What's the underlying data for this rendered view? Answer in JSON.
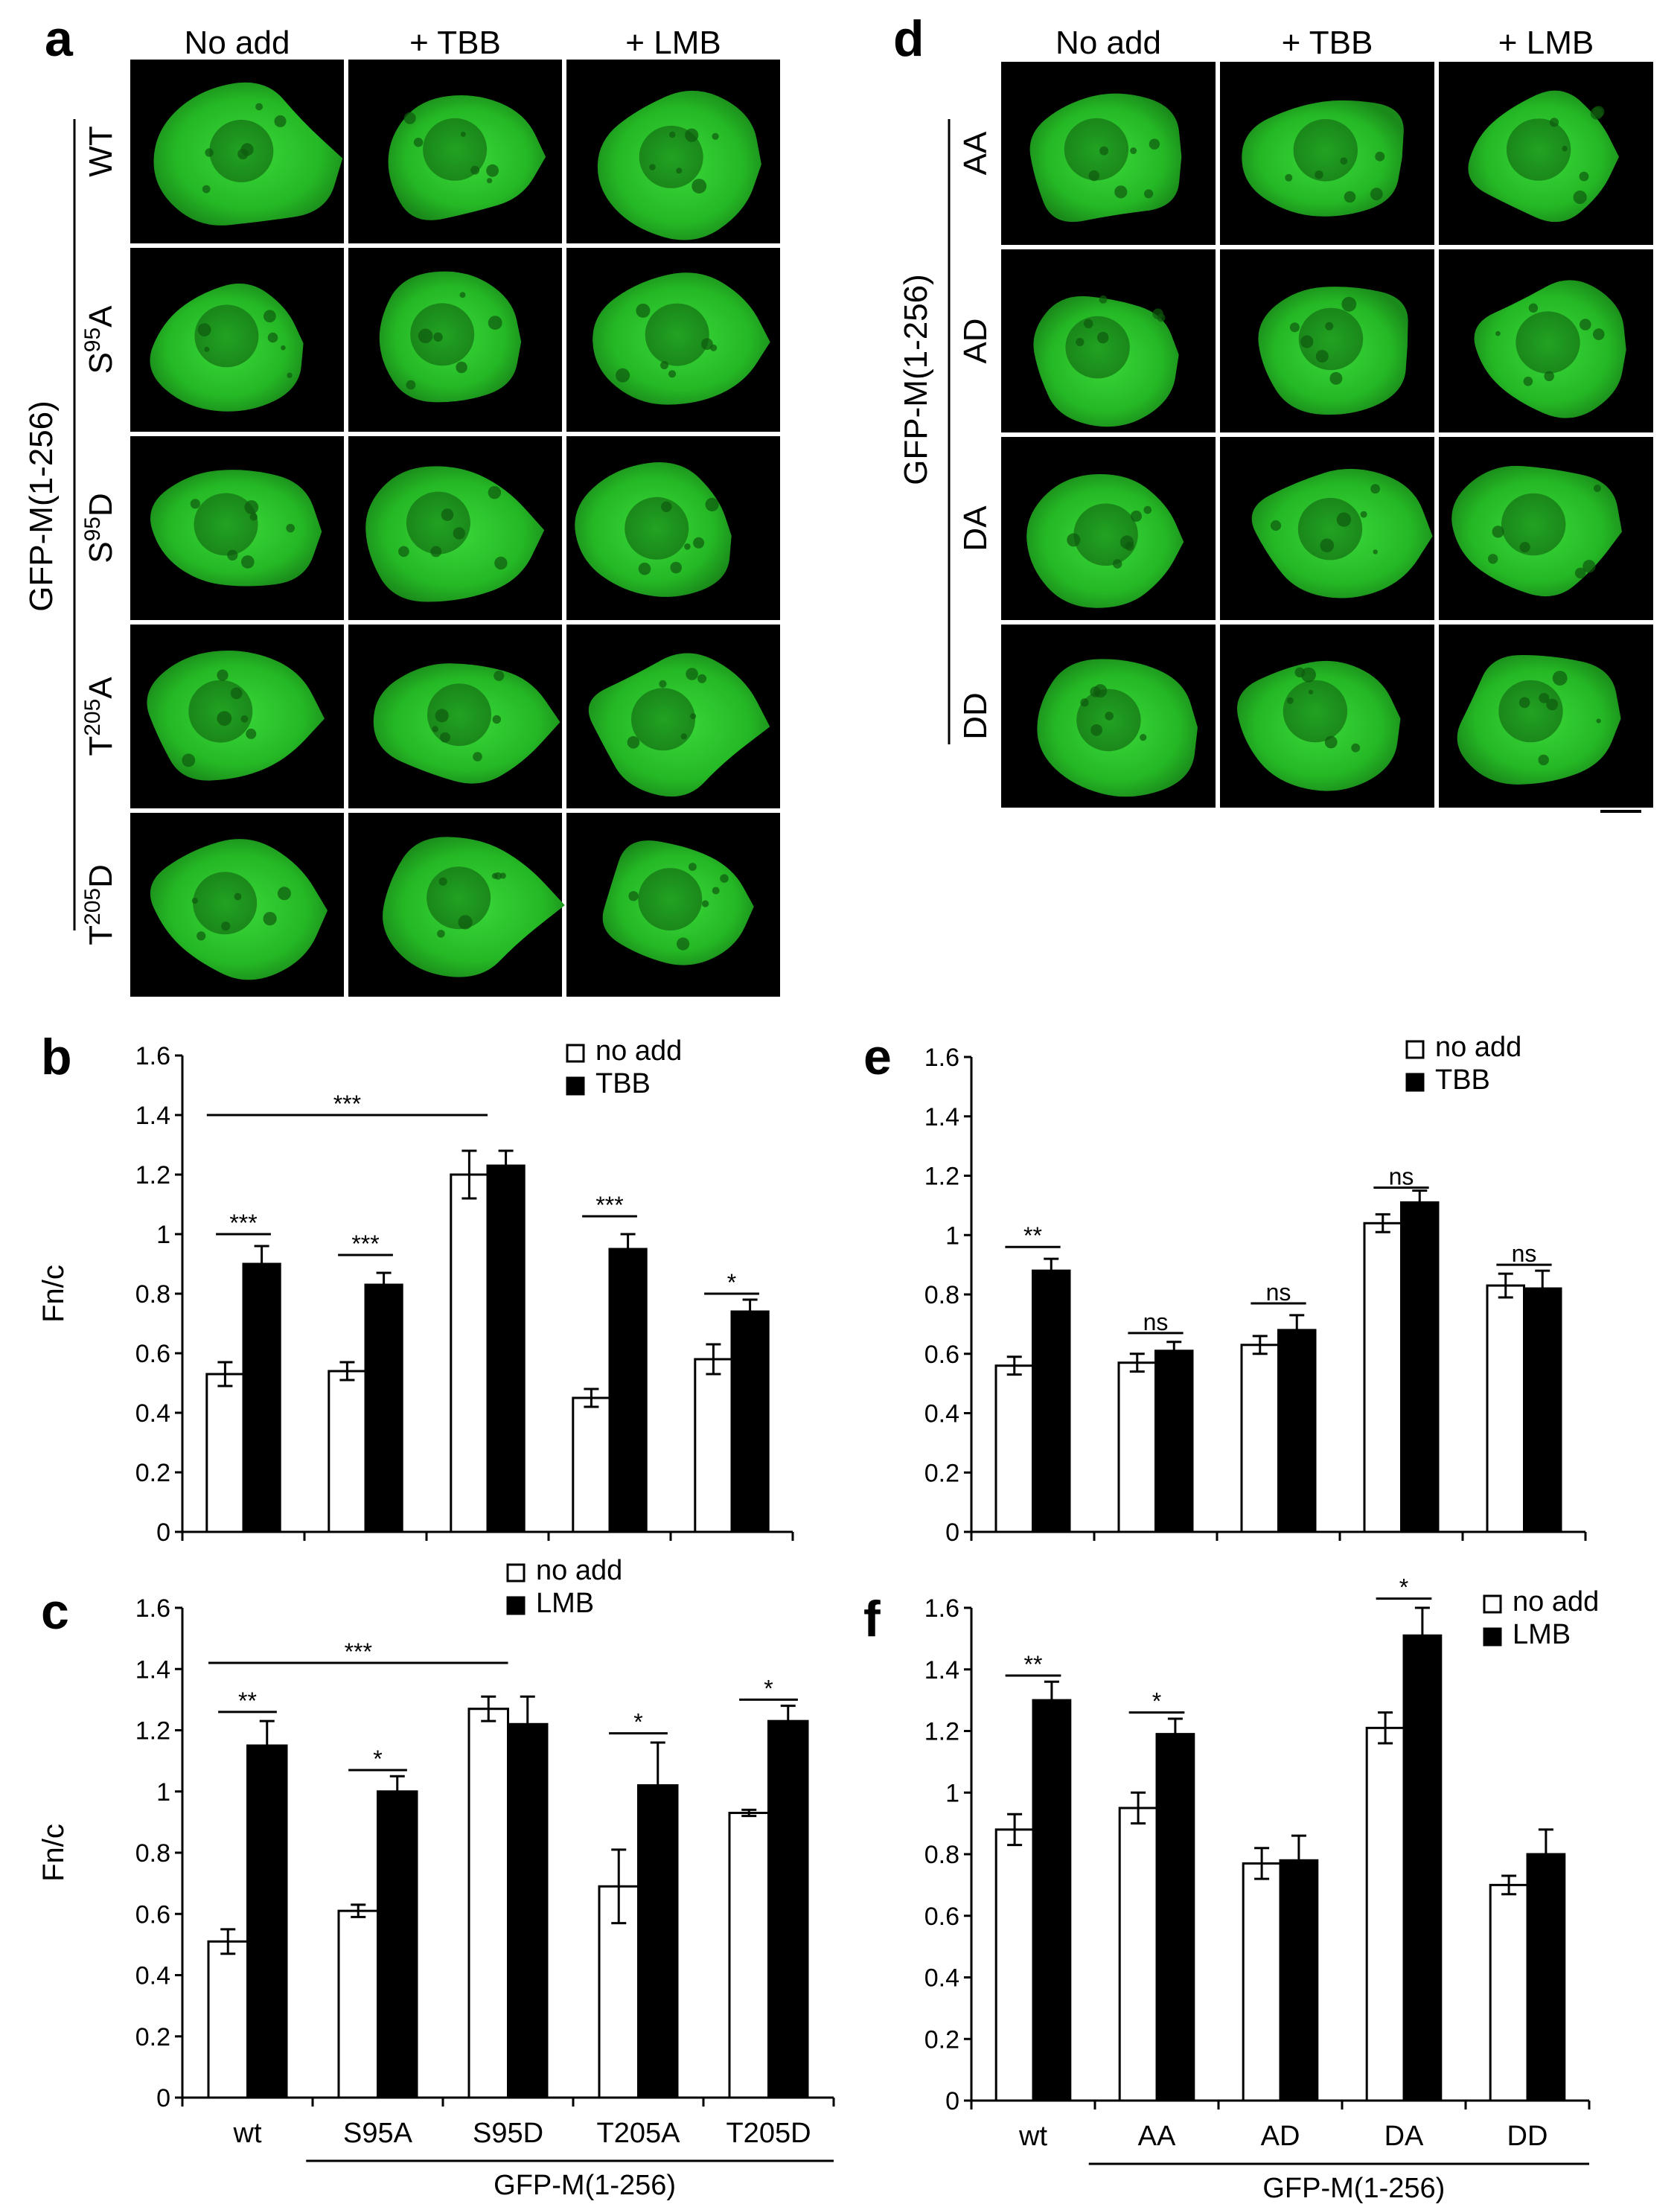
{
  "colors": {
    "bar_open": "#ffffff",
    "bar_filled": "#000000",
    "cell_green": "#2fd62f",
    "cell_bg": "#000000"
  },
  "panel_a": {
    "letter": "a",
    "columns": [
      "No add",
      "+ TBB",
      "+ LMB"
    ],
    "rows": [
      "WT",
      "S95A",
      "S95D",
      "T205A",
      "T205D"
    ],
    "row_display": [
      {
        "pre": "WT",
        "sup": "",
        "post": ""
      },
      {
        "pre": "S",
        "sup": "95",
        "post": "A"
      },
      {
        "pre": "S",
        "sup": "95",
        "post": "D"
      },
      {
        "pre": "T",
        "sup": "205",
        "post": "A"
      },
      {
        "pre": "T",
        "sup": "205",
        "post": "D"
      }
    ],
    "side_label": "GFP-M(1-256)"
  },
  "panel_d": {
    "letter": "d",
    "columns": [
      "No add",
      "+ TBB",
      "+ LMB"
    ],
    "rows": [
      "AA",
      "AD",
      "DA",
      "DD"
    ],
    "side_label": "GFP-M(1-256)"
  },
  "chart_data": [
    {
      "id": "b",
      "letter": "b",
      "type": "bar",
      "categories": [
        "wt",
        "S95A",
        "S95D",
        "T205A",
        "T205D"
      ],
      "ylabel": "Fn/c",
      "ylim": [
        0,
        1.6
      ],
      "yticks": [
        "0",
        "0.2",
        "0.4",
        "0.6",
        "0.8",
        "1",
        "1.2",
        "1.4",
        "1.6"
      ],
      "series": [
        {
          "name": "no add",
          "values": [
            0.53,
            0.54,
            1.2,
            0.45,
            0.58
          ],
          "errors": [
            0.04,
            0.03,
            0.08,
            0.03,
            0.05
          ]
        },
        {
          "name": "TBB",
          "values": [
            0.9,
            0.83,
            1.23,
            0.95,
            0.74
          ],
          "errors": [
            0.06,
            0.04,
            0.05,
            0.05,
            0.04
          ]
        }
      ],
      "significance": [
        {
          "label": "***",
          "from": 0,
          "to": 0,
          "y": 1.0
        },
        {
          "label": "***",
          "from": 1,
          "to": 1,
          "y": 0.93
        },
        {
          "label": "***",
          "from": 3,
          "to": 3,
          "y": 1.06
        },
        {
          "label": "*",
          "from": 4,
          "to": 4,
          "y": 0.8
        },
        {
          "label": "***",
          "from": 0,
          "to": 2,
          "y": 1.4,
          "span": true
        }
      ],
      "xgroup_label": "",
      "show_xlabels": false
    },
    {
      "id": "c",
      "letter": "c",
      "type": "bar",
      "categories": [
        "wt",
        "S95A",
        "S95D",
        "T205A",
        "T205D"
      ],
      "ylabel": "Fn/c",
      "ylim": [
        0,
        1.6
      ],
      "yticks": [
        "0",
        "0.2",
        "0.4",
        "0.6",
        "0.8",
        "1",
        "1.2",
        "1.4",
        "1.6"
      ],
      "series": [
        {
          "name": "no add",
          "values": [
            0.51,
            0.61,
            1.27,
            0.69,
            0.93
          ],
          "errors": [
            0.04,
            0.02,
            0.04,
            0.12,
            0.01
          ]
        },
        {
          "name": "LMB",
          "values": [
            1.15,
            1.0,
            1.22,
            1.02,
            1.23
          ],
          "errors": [
            0.08,
            0.05,
            0.09,
            0.14,
            0.05
          ]
        }
      ],
      "significance": [
        {
          "label": "**",
          "from": 0,
          "to": 0,
          "y": 1.26
        },
        {
          "label": "*",
          "from": 1,
          "to": 1,
          "y": 1.07
        },
        {
          "label": "*",
          "from": 3,
          "to": 3,
          "y": 1.19
        },
        {
          "label": "*",
          "from": 4,
          "to": 4,
          "y": 1.3
        },
        {
          "label": "***",
          "from": 0,
          "to": 2,
          "y": 1.42,
          "span": true
        }
      ],
      "xgroup_label": "GFP-M(1-256)",
      "show_xlabels": true
    },
    {
      "id": "e",
      "letter": "e",
      "type": "bar",
      "categories": [
        "wt",
        "AA",
        "AD",
        "DA",
        "DD"
      ],
      "ylabel": "",
      "ylim": [
        0,
        1.6
      ],
      "yticks": [
        "0",
        "0.2",
        "0.4",
        "0.6",
        "0.8",
        "1",
        "1.2",
        "1.4",
        "1.6"
      ],
      "series": [
        {
          "name": "no add",
          "values": [
            0.56,
            0.57,
            0.63,
            1.04,
            0.83
          ],
          "errors": [
            0.03,
            0.03,
            0.03,
            0.03,
            0.04
          ]
        },
        {
          "name": "TBB",
          "values": [
            0.88,
            0.61,
            0.68,
            1.11,
            0.82
          ],
          "errors": [
            0.04,
            0.03,
            0.05,
            0.04,
            0.06
          ]
        }
      ],
      "significance": [
        {
          "label": "**",
          "from": 0,
          "to": 0,
          "y": 0.96
        },
        {
          "label": "ns",
          "from": 1,
          "to": 1,
          "y": 0.67
        },
        {
          "label": "ns",
          "from": 2,
          "to": 2,
          "y": 0.77
        },
        {
          "label": "ns",
          "from": 3,
          "to": 3,
          "y": 1.16
        },
        {
          "label": "ns",
          "from": 4,
          "to": 4,
          "y": 0.9
        }
      ],
      "xgroup_label": "",
      "show_xlabels": false
    },
    {
      "id": "f",
      "letter": "f",
      "type": "bar",
      "categories": [
        "wt",
        "AA",
        "AD",
        "DA",
        "DD"
      ],
      "ylabel": "",
      "ylim": [
        0,
        1.6
      ],
      "yticks": [
        "0",
        "0.2",
        "0.4",
        "0.6",
        "0.8",
        "1",
        "1.2",
        "1.4",
        "1.6"
      ],
      "series": [
        {
          "name": "no add",
          "values": [
            0.88,
            0.95,
            0.77,
            1.21,
            0.7
          ],
          "errors": [
            0.05,
            0.05,
            0.05,
            0.05,
            0.03
          ]
        },
        {
          "name": "LMB",
          "values": [
            1.3,
            1.19,
            0.78,
            1.51,
            0.8
          ],
          "errors": [
            0.06,
            0.05,
            0.08,
            0.09,
            0.08
          ]
        }
      ],
      "significance": [
        {
          "label": "**",
          "from": 0,
          "to": 0,
          "y": 1.38
        },
        {
          "label": "*",
          "from": 1,
          "to": 1,
          "y": 1.26
        },
        {
          "label": "*",
          "from": 3,
          "to": 3,
          "y": 1.63
        }
      ],
      "xgroup_label": "GFP-M(1-256)",
      "show_xlabels": true
    }
  ]
}
